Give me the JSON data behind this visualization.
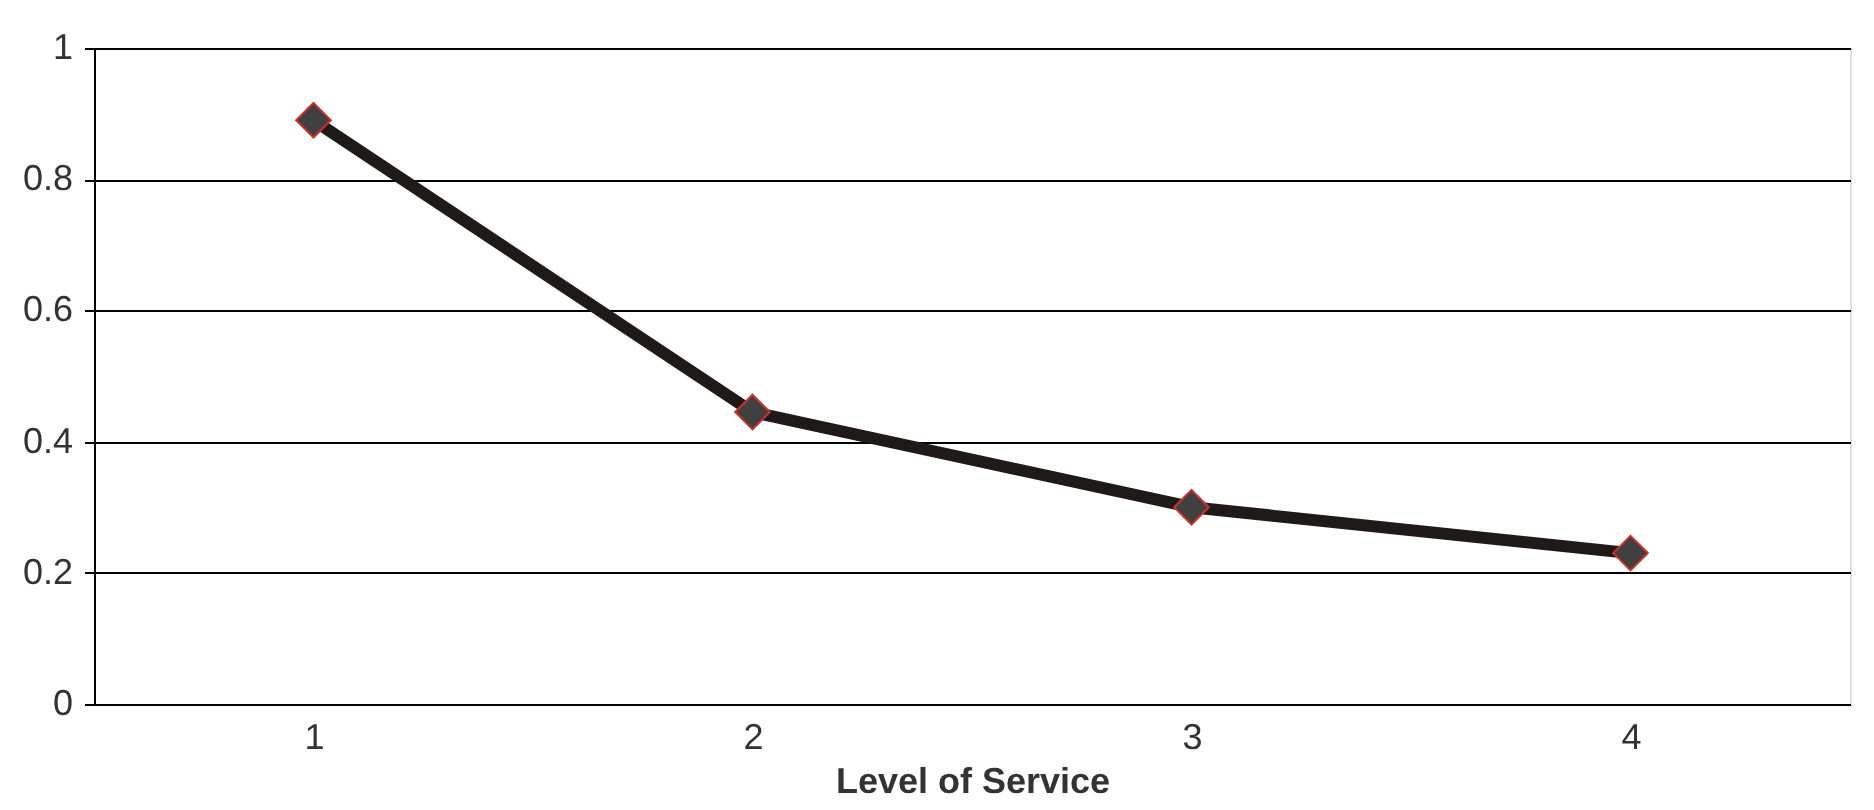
{
  "chart_data": {
    "type": "line",
    "xlabel": "Level of Service",
    "categories": [
      "1",
      "2",
      "3",
      "4"
    ],
    "series": [
      {
        "color": "#1f1a17",
        "values": [
          0.89,
          0.445,
          0.3,
          0.23
        ]
      }
    ],
    "ylim": [
      0,
      1
    ],
    "yticks": [
      0,
      0.2,
      0.4,
      0.6,
      0.8,
      1
    ],
    "grid": "y",
    "marker": "diamond",
    "line_style": "solid"
  }
}
